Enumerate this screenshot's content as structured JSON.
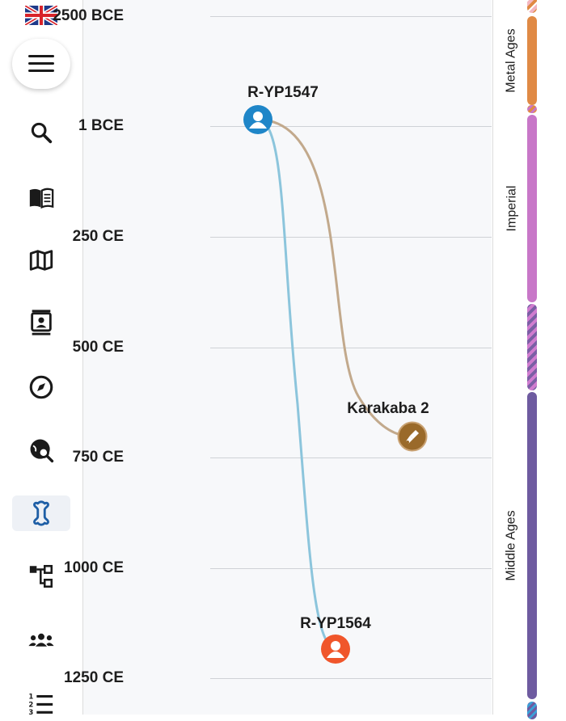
{
  "language": {
    "flag": "uk-flag-icon"
  },
  "sidebar": {
    "menu_icon": "hamburger-menu-icon",
    "items": [
      {
        "name": "search",
        "icon": "search-icon",
        "active": false
      },
      {
        "name": "sources",
        "icon": "book-icon",
        "active": false
      },
      {
        "name": "map",
        "icon": "map-icon",
        "active": false
      },
      {
        "name": "profiles",
        "icon": "contact-card-icon",
        "active": false
      },
      {
        "name": "explore",
        "icon": "compass-icon",
        "active": false
      },
      {
        "name": "global-search",
        "icon": "globe-search-icon",
        "active": false
      },
      {
        "name": "ancient-dna",
        "icon": "bone-icon",
        "active": true
      },
      {
        "name": "tree",
        "icon": "tree-structure-icon",
        "active": false
      },
      {
        "name": "groups",
        "icon": "group-icon",
        "active": false
      },
      {
        "name": "list",
        "icon": "numbered-list-icon",
        "active": false
      }
    ],
    "active_color": "#1f5fa6"
  },
  "timeline": {
    "ticks": [
      "2500 BCE",
      "1 BCE",
      "250 CE",
      "500 CE",
      "750 CE",
      "1000 CE",
      "1250 CE"
    ],
    "nodes": [
      {
        "id": "n1",
        "label": "R-YP1547",
        "type": "person",
        "color": "#1f86c8",
        "year": 1
      },
      {
        "id": "n2",
        "label": "Karakaba 2",
        "type": "archaeological-site",
        "color": "#9a6a2a",
        "year": 700
      },
      {
        "id": "n3",
        "label": "R-YP1564",
        "type": "person",
        "color": "#f0562b",
        "year": 1185
      }
    ],
    "links": [
      {
        "from": "n1",
        "to": "n2",
        "color": "#c2a98c"
      },
      {
        "from": "n1",
        "to": "n3",
        "color": "#8cc5dc"
      }
    ]
  },
  "eras": [
    {
      "name": "Metal Ages",
      "color": "#e08a45",
      "pattern": "solid"
    },
    {
      "name": "Imperial",
      "color": "#c877c8",
      "pattern": "solid"
    },
    {
      "name": "",
      "color": "#7b5fa5",
      "pattern": "striped"
    },
    {
      "name": "Middle Ages",
      "color": "#6e5ba0",
      "pattern": "solid"
    }
  ]
}
